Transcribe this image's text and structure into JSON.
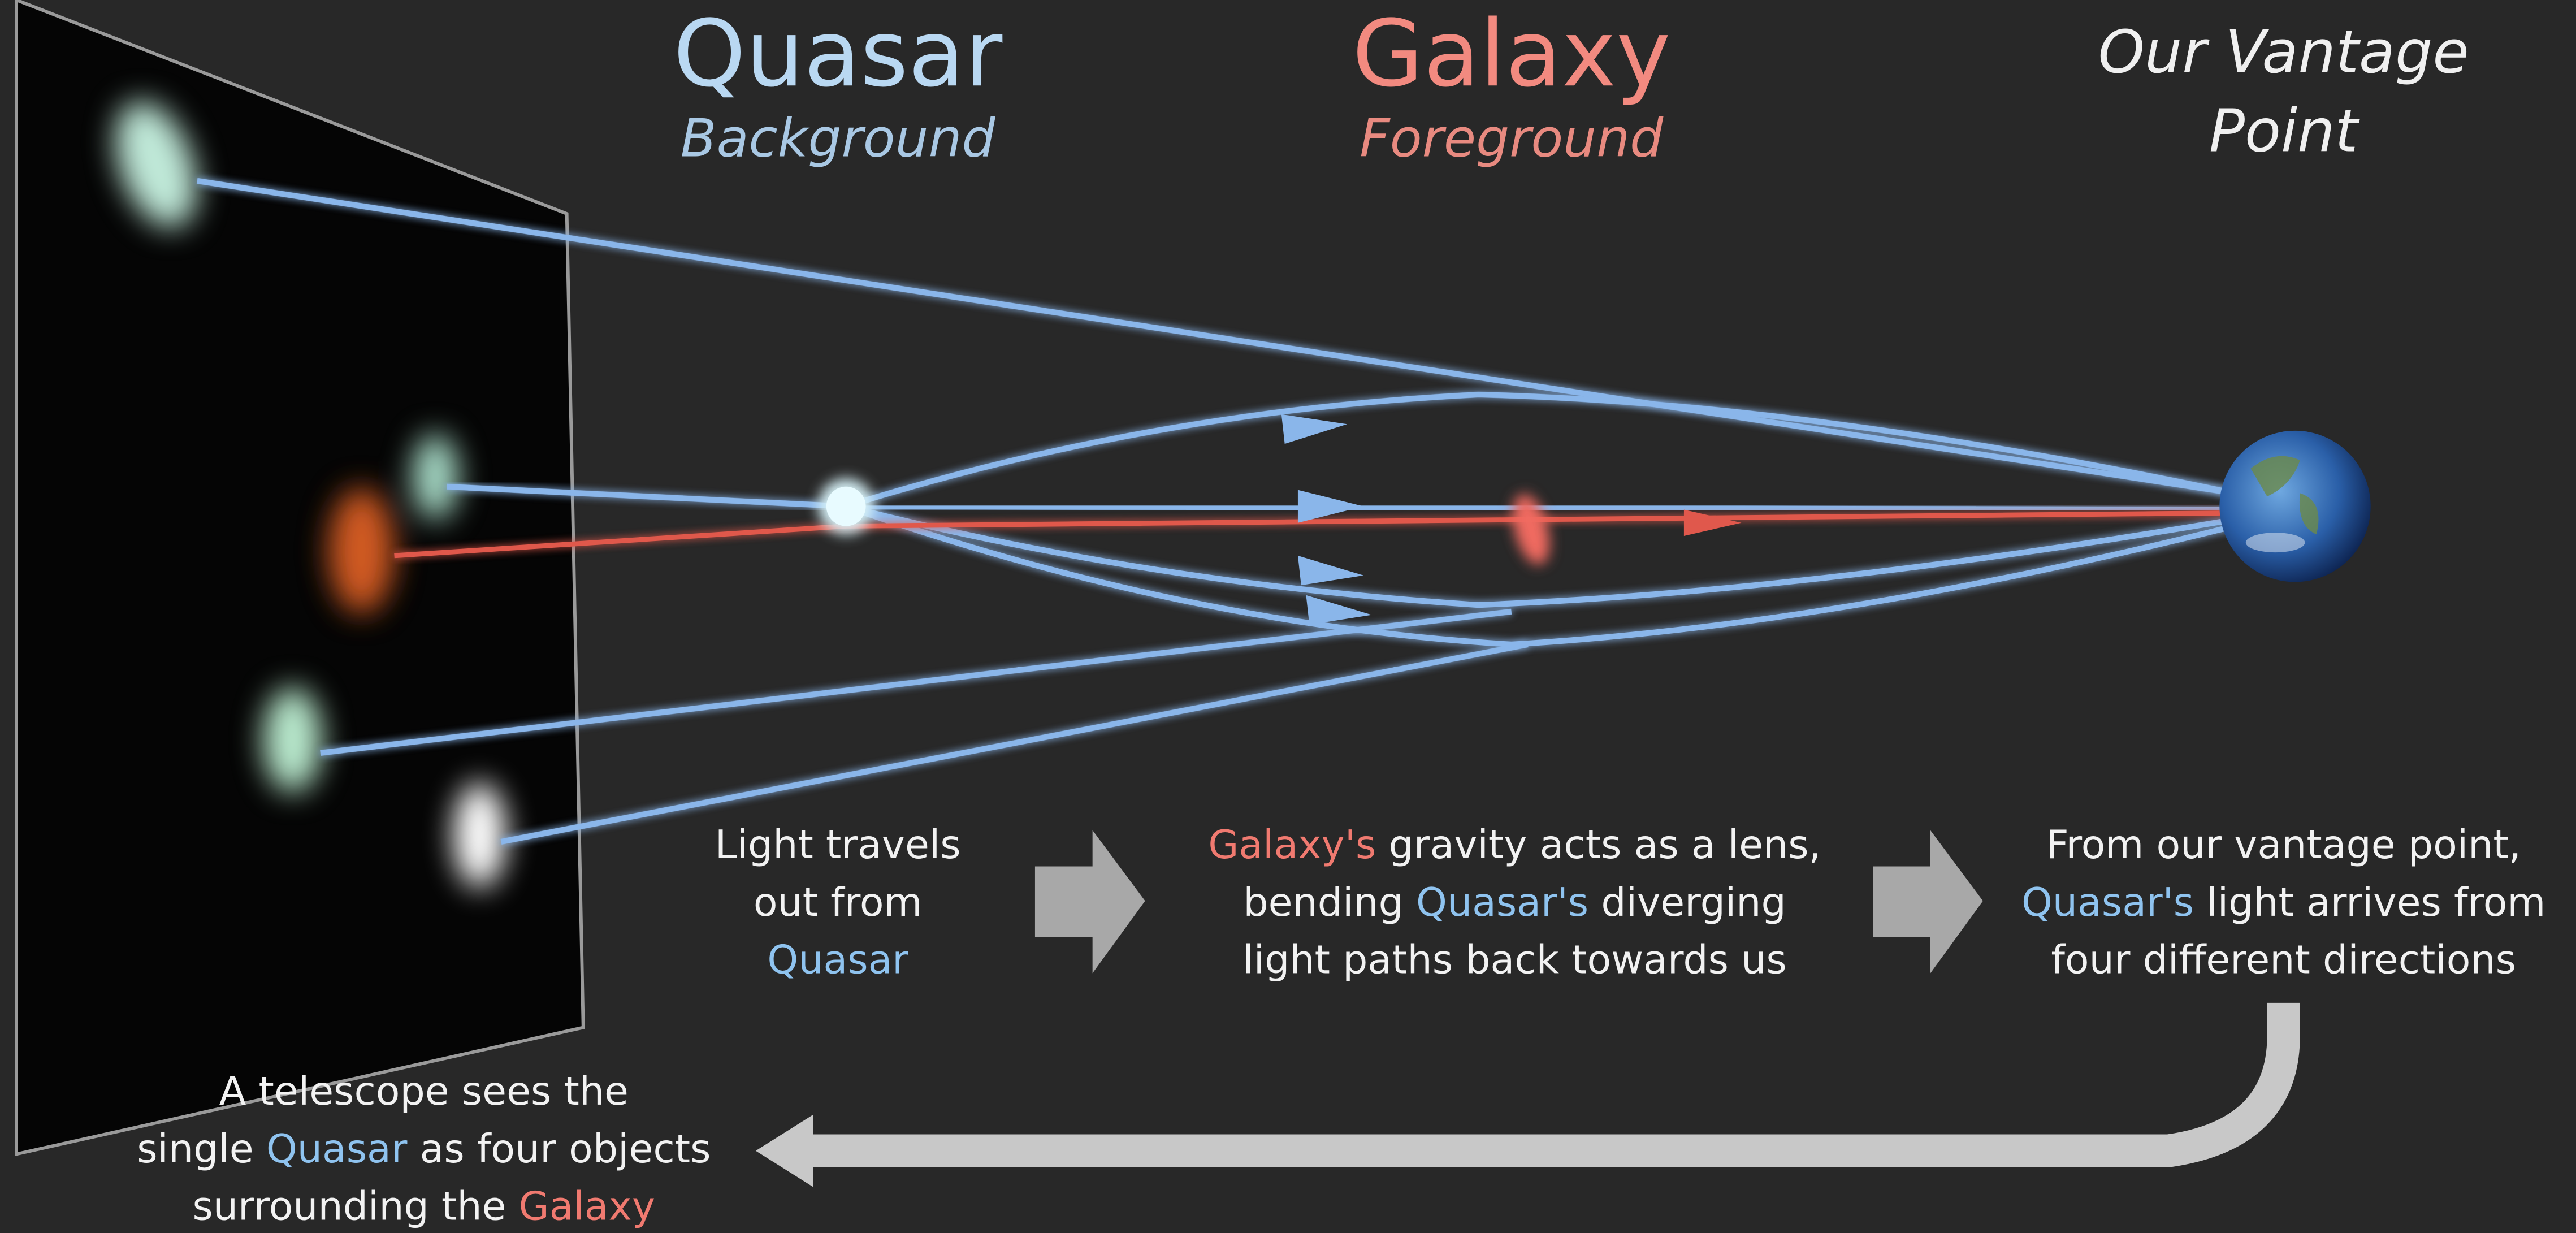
{
  "headers": [
    {
      "title": "Quasar",
      "subtitle": "Background"
    },
    {
      "title": "Galaxy",
      "subtitle": "Foreground"
    },
    {
      "lines": [
        "Our Vantage",
        "Point"
      ]
    }
  ],
  "steps": [
    {
      "lines": [
        [
          "Light travels"
        ],
        [
          "out from"
        ],
        [
          "Quasar"
        ]
      ]
    },
    {
      "lines": [
        [
          "Galaxy's",
          "gravity acts as a lens,"
        ],
        [
          "bending",
          "Quasar's",
          "diverging"
        ],
        [
          "light paths back towards us"
        ]
      ]
    },
    {
      "lines": [
        [
          "From our vantage point,"
        ],
        [
          "Quasar's",
          "light arrives from"
        ],
        [
          "four different directions"
        ]
      ]
    }
  ],
  "telescope": {
    "lines": [
      [
        "A telescope sees the"
      ],
      [
        "single",
        "Quasar",
        "as four objects"
      ],
      [
        "surrounding the",
        "Galaxy"
      ]
    ]
  }
}
